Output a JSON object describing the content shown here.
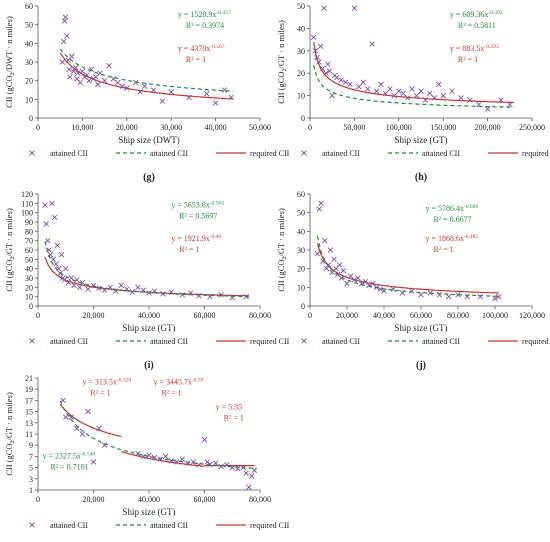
{
  "colors": {
    "attained_marker": "#7b4fa6",
    "attained_fit": "#1f8a3a",
    "required_line": "#c0392b",
    "attained_eq_text": "#1f8a3a",
    "required_eq_text": "#c0392b",
    "axis": "#555555",
    "grid": "#d9d9d9"
  },
  "legend_labels": {
    "attained": "attained CII",
    "fit": "attained CII",
    "required": "required CII"
  },
  "chart_data": [
    {
      "panel": "g",
      "panel_label": "(g)",
      "type": "scatter",
      "xlabel": "Ship size (DWT)",
      "ylabel_main": "CII (gCO",
      "ylabel_sub": "2",
      "ylabel_tail": "/DWT · n miles)",
      "xlim": [
        0,
        50000
      ],
      "ylim": [
        0,
        60
      ],
      "xticks": [
        0,
        10000,
        20000,
        30000,
        40000,
        50000
      ],
      "xtick_labels": [
        "0",
        "10,000",
        "20,000",
        "30,000",
        "40,000",
        "50,000"
      ],
      "yticks": [
        0,
        10,
        20,
        30,
        40,
        50,
        60
      ],
      "ytick_labels": [
        "0",
        "10",
        "20",
        "30",
        "40",
        "50",
        "60"
      ],
      "fit": {
        "a": 1528.9,
        "b": -0.437,
        "x_range": [
          5000,
          44000
        ]
      },
      "required": {
        "type": "power",
        "a": 4370,
        "b": -0.567,
        "x_range": [
          5000,
          44000
        ]
      },
      "eq_attained": {
        "base": "y = 1528.9x",
        "exp": "-0.437",
        "r2": "R² = 0.3974"
      },
      "eq_required": {
        "base": "y = 4370x",
        "exp": "-0.567",
        "r2": "R² = 1"
      },
      "points": [
        [
          5500,
          30
        ],
        [
          5800,
          41
        ],
        [
          6000,
          52
        ],
        [
          6200,
          54
        ],
        [
          6500,
          44
        ],
        [
          6800,
          31
        ],
        [
          7000,
          26
        ],
        [
          7200,
          22
        ],
        [
          7600,
          33
        ],
        [
          8000,
          25
        ],
        [
          8500,
          27
        ],
        [
          8800,
          21
        ],
        [
          9000,
          24
        ],
        [
          9500,
          19
        ],
        [
          10000,
          25
        ],
        [
          10500,
          22
        ],
        [
          11000,
          23
        ],
        [
          11500,
          20
        ],
        [
          12000,
          26
        ],
        [
          12500,
          21
        ],
        [
          13000,
          22
        ],
        [
          13500,
          18
        ],
        [
          14000,
          24
        ],
        [
          15000,
          20
        ],
        [
          16000,
          28
        ],
        [
          17000,
          21
        ],
        [
          18000,
          19
        ],
        [
          19000,
          17
        ],
        [
          20000,
          16
        ],
        [
          22000,
          19
        ],
        [
          23000,
          14
        ],
        [
          24000,
          17
        ],
        [
          26000,
          15
        ],
        [
          28000,
          9
        ],
        [
          30000,
          14
        ],
        [
          34000,
          11
        ],
        [
          38000,
          13
        ],
        [
          40000,
          8
        ],
        [
          42000,
          15
        ],
        [
          43500,
          11
        ]
      ]
    },
    {
      "panel": "h",
      "panel_label": "(h)",
      "type": "scatter",
      "xlabel": "Ship size (GT)",
      "ylabel_main": "CII (gCO",
      "ylabel_sub": "2",
      "ylabel_tail": "/GT · n miles)",
      "xlim": [
        0,
        250000
      ],
      "ylim": [
        0,
        50
      ],
      "xticks": [
        0,
        50000,
        100000,
        150000,
        200000,
        250000
      ],
      "xtick_labels": [
        "0",
        "50,000",
        "100,000",
        "150,000",
        "200,000",
        "250,000"
      ],
      "yticks": [
        0,
        10,
        20,
        30,
        40,
        50
      ],
      "ytick_labels": [
        "0",
        "10",
        "20",
        "30",
        "40",
        "50"
      ],
      "fit": {
        "a": 609.36,
        "b": -0.392,
        "x_range": [
          4000,
          230000
        ]
      },
      "required": {
        "type": "power",
        "a": 883.5,
        "b": -0.393,
        "x_range": [
          4000,
          230000
        ]
      },
      "eq_attained": {
        "base": "y = 609.36x",
        "exp": "-0.392",
        "r2": "R² = 0.5811"
      },
      "eq_required": {
        "base": "y = 883.5x",
        "exp": "-0.393",
        "r2": "R² = 1"
      },
      "points": [
        [
          4000,
          36
        ],
        [
          6000,
          30
        ],
        [
          8000,
          27
        ],
        [
          10000,
          25
        ],
        [
          12000,
          32
        ],
        [
          14000,
          22
        ],
        [
          16000,
          49
        ],
        [
          18000,
          20
        ],
        [
          20000,
          24
        ],
        [
          22000,
          21
        ],
        [
          25000,
          10
        ],
        [
          28000,
          19
        ],
        [
          30000,
          18
        ],
        [
          35000,
          17
        ],
        [
          40000,
          16
        ],
        [
          45000,
          15
        ],
        [
          50000,
          49
        ],
        [
          55000,
          14
        ],
        [
          60000,
          16
        ],
        [
          65000,
          13
        ],
        [
          70000,
          33
        ],
        [
          75000,
          12
        ],
        [
          80000,
          15
        ],
        [
          85000,
          11
        ],
        [
          90000,
          13
        ],
        [
          95000,
          10
        ],
        [
          100000,
          12
        ],
        [
          105000,
          11
        ],
        [
          110000,
          9
        ],
        [
          115000,
          13
        ],
        [
          120000,
          10
        ],
        [
          125000,
          12
        ],
        [
          130000,
          8
        ],
        [
          135000,
          11
        ],
        [
          140000,
          9
        ],
        [
          145000,
          15
        ],
        [
          150000,
          10
        ],
        [
          160000,
          12
        ],
        [
          170000,
          9
        ],
        [
          180000,
          8
        ],
        [
          190000,
          6
        ],
        [
          200000,
          4
        ],
        [
          215000,
          8
        ],
        [
          225000,
          6
        ]
      ]
    },
    {
      "panel": "i",
      "panel_label": "(i)",
      "type": "scatter",
      "xlabel": "Ship size (GT)",
      "ylabel_main": "CII (gCO",
      "ylabel_sub": "2",
      "ylabel_tail": "/GT · n miles)",
      "xlim": [
        0,
        80000
      ],
      "ylim": [
        0,
        120
      ],
      "xticks": [
        0,
        20000,
        40000,
        60000,
        80000
      ],
      "xtick_labels": [
        "0",
        "20,000",
        "40,000",
        "60,000",
        "80,000"
      ],
      "yticks": [
        0,
        10,
        20,
        30,
        40,
        50,
        60,
        70,
        80,
        90,
        100,
        110,
        120
      ],
      "ytick_labels": [
        "0",
        "10",
        "20",
        "30",
        "40",
        "50",
        "60",
        "70",
        "80",
        "90",
        "100",
        "110",
        "120"
      ],
      "fit": {
        "a": 5653.8,
        "b": -0.563,
        "x_range": [
          2500,
          76000
        ]
      },
      "required": {
        "type": "power",
        "a": 1921.9,
        "b": -0.46,
        "x_range": [
          2500,
          76000
        ]
      },
      "eq_attained": {
        "base": "y = 5653.8x",
        "exp": "-0.563",
        "r2": "R² = 0.5697"
      },
      "eq_required": {
        "base": "y = 1921.9x",
        "exp": "-0.46",
        "r2": "R² = 1"
      },
      "points": [
        [
          2500,
          108
        ],
        [
          3000,
          88
        ],
        [
          3500,
          70
        ],
        [
          4000,
          60
        ],
        [
          4500,
          55
        ],
        [
          5000,
          110
        ],
        [
          5500,
          50
        ],
        [
          6000,
          95
        ],
        [
          6500,
          45
        ],
        [
          7000,
          65
        ],
        [
          7500,
          40
        ],
        [
          8000,
          35
        ],
        [
          8500,
          55
        ],
        [
          9000,
          30
        ],
        [
          9500,
          28
        ],
        [
          10000,
          40
        ],
        [
          11000,
          25
        ],
        [
          12000,
          30
        ],
        [
          13000,
          22
        ],
        [
          14000,
          28
        ],
        [
          15000,
          20
        ],
        [
          16000,
          25
        ],
        [
          18000,
          18
        ],
        [
          20000,
          22
        ],
        [
          22000,
          19
        ],
        [
          24000,
          17
        ],
        [
          26000,
          20
        ],
        [
          28000,
          16
        ],
        [
          30000,
          22
        ],
        [
          32000,
          18
        ],
        [
          34000,
          15
        ],
        [
          36000,
          20
        ],
        [
          38000,
          17
        ],
        [
          40000,
          14
        ],
        [
          42000,
          16
        ],
        [
          45000,
          13
        ],
        [
          48000,
          15
        ],
        [
          52000,
          12
        ],
        [
          55000,
          14
        ],
        [
          58000,
          11
        ],
        [
          62000,
          10
        ],
        [
          66000,
          12
        ],
        [
          70000,
          9
        ],
        [
          75000,
          10
        ]
      ]
    },
    {
      "panel": "j",
      "panel_label": "(j)",
      "type": "scatter",
      "xlabel": "Ship size (GT)",
      "ylabel_main": "CII (gCO",
      "ylabel_sub": "2",
      "ylabel_tail": "/GT · n miles)",
      "xlim": [
        0,
        120000
      ],
      "ylim": [
        0,
        60
      ],
      "xticks": [
        0,
        20000,
        40000,
        60000,
        80000,
        100000,
        120000
      ],
      "xtick_labels": [
        "0",
        "20,000",
        "40,000",
        "60,000",
        "80,000",
        "100,000",
        "120,000"
      ],
      "yticks": [
        0,
        10,
        20,
        30,
        40,
        50,
        60
      ],
      "ytick_labels": [
        "0",
        "10",
        "20",
        "30",
        "40",
        "50",
        "60"
      ],
      "fit": {
        "a": 5786.4,
        "b": -0.608,
        "x_range": [
          4000,
          102000
        ]
      },
      "required": {
        "type": "power",
        "a": 1868.6,
        "b": -0.485,
        "x_range": [
          4000,
          102000
        ]
      },
      "eq_attained": {
        "base": "y = 5786.4x",
        "exp": "-0.608",
        "r2": "R² = 0.6677"
      },
      "eq_required": {
        "base": "y = 1868.6x",
        "exp": "-0.485",
        "r2": "R² = 1"
      },
      "points": [
        [
          4000,
          28
        ],
        [
          5000,
          52
        ],
        [
          6000,
          55
        ],
        [
          7000,
          24
        ],
        [
          8000,
          35
        ],
        [
          9000,
          20
        ],
        [
          10000,
          22
        ],
        [
          11000,
          30
        ],
        [
          12000,
          18
        ],
        [
          13000,
          25
        ],
        [
          14000,
          20
        ],
        [
          15000,
          17
        ],
        [
          16000,
          22
        ],
        [
          17000,
          15
        ],
        [
          18000,
          19
        ],
        [
          20000,
          12
        ],
        [
          22000,
          16
        ],
        [
          24000,
          14
        ],
        [
          26000,
          15
        ],
        [
          28000,
          12
        ],
        [
          30000,
          13
        ],
        [
          32000,
          11
        ],
        [
          34000,
          12
        ],
        [
          36000,
          10
        ],
        [
          38000,
          9
        ],
        [
          40000,
          8
        ],
        [
          45000,
          9
        ],
        [
          50000,
          7
        ],
        [
          55000,
          8
        ],
        [
          60000,
          6
        ],
        [
          65000,
          7
        ],
        [
          70000,
          6
        ],
        [
          75000,
          5
        ],
        [
          80000,
          6
        ],
        [
          85000,
          5
        ],
        [
          92000,
          5
        ],
        [
          100000,
          4
        ],
        [
          102000,
          5
        ]
      ]
    },
    {
      "panel": "k",
      "panel_label": "(k)",
      "type": "scatter",
      "xlabel": "Ship size (GT)",
      "ylabel_main": "CII (gCO",
      "ylabel_sub": "2",
      "ylabel_tail": "/GT · n miles)",
      "xlim": [
        0,
        80000
      ],
      "ylim": [
        1,
        21
      ],
      "xticks": [
        0,
        20000,
        40000,
        60000,
        80000
      ],
      "xtick_labels": [
        "0",
        "20,000",
        "40,000",
        "60,000",
        "80,000"
      ],
      "yticks": [
        1,
        3,
        5,
        7,
        9,
        11,
        13,
        15,
        17,
        19,
        21
      ],
      "ytick_labels": [
        "1",
        "3",
        "5",
        "7",
        "9",
        "11",
        "13",
        "15",
        "17",
        "19",
        "21"
      ],
      "fit": {
        "a": 2327.5,
        "b": -0.548,
        "x_range": [
          8000,
          78000
        ]
      },
      "required": {
        "type": "piecewise",
        "segments": [
          {
            "a": 313.5,
            "b": -0.329,
            "x_range": [
              8000,
              30000
            ]
          },
          {
            "a": 3445.7,
            "b": -0.59,
            "x_range": [
              30000,
              60000
            ]
          },
          {
            "a": 5.35,
            "b": 0,
            "x_range": [
              60000,
              78000
            ]
          }
        ]
      },
      "eq_attained": {
        "base": "y = 2327.5x",
        "exp": "-0.548",
        "r2": "R² = 0.7101"
      },
      "eq_required": {
        "base": "y = 313.5x",
        "exp": "-0.329",
        "r2": "R² = 1"
      },
      "eq_required_2": {
        "base": "y = 3445.7x",
        "exp": "-0.59",
        "r2": "R² = 1"
      },
      "eq_required_3": {
        "base": "y = 5.35",
        "exp": "",
        "r2": "R² = 1"
      },
      "points": [
        [
          9000,
          17
        ],
        [
          10000,
          14
        ],
        [
          12000,
          14
        ],
        [
          14000,
          12
        ],
        [
          16000,
          11
        ],
        [
          18000,
          15
        ],
        [
          20000,
          6
        ],
        [
          22000,
          12
        ],
        [
          24000,
          9
        ],
        [
          36000,
          7.5
        ],
        [
          38000,
          7
        ],
        [
          40000,
          7.2
        ],
        [
          42000,
          6.8
        ],
        [
          44000,
          6.5
        ],
        [
          46000,
          7
        ],
        [
          48000,
          6.2
        ],
        [
          50000,
          6
        ],
        [
          52000,
          6.5
        ],
        [
          54000,
          5.8
        ],
        [
          56000,
          6
        ],
        [
          58000,
          5.5
        ],
        [
          60000,
          10
        ],
        [
          61000,
          6
        ],
        [
          62000,
          5.6
        ],
        [
          64000,
          5.8
        ],
        [
          66000,
          5.2
        ],
        [
          68000,
          5.5
        ],
        [
          70000,
          5
        ],
        [
          72000,
          4.8
        ],
        [
          74000,
          5
        ],
        [
          75000,
          4
        ],
        [
          76000,
          1.5
        ],
        [
          77000,
          3.5
        ],
        [
          78000,
          4.5
        ]
      ]
    }
  ]
}
